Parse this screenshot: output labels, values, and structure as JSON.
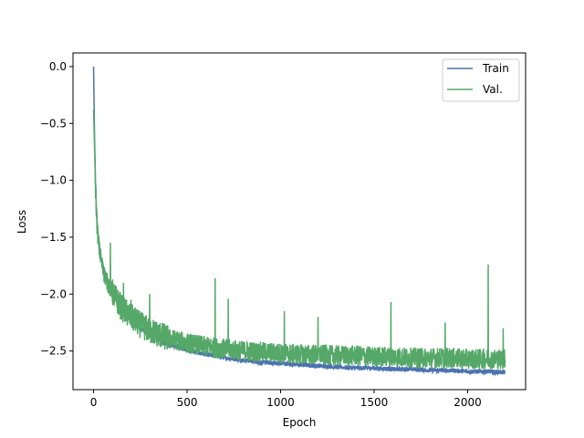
{
  "chart_data": {
    "type": "line",
    "title": "",
    "xlabel": "Epoch",
    "ylabel": "Loss",
    "xlim": [
      -110,
      2310
    ],
    "ylim": [
      -2.84,
      0.12
    ],
    "xticks": [
      0,
      500,
      1000,
      1500,
      2000
    ],
    "yticks": [
      0.0,
      -0.5,
      -1.0,
      -1.5,
      -2.0,
      -2.5
    ],
    "xtick_labels": [
      "0",
      "500",
      "1000",
      "1500",
      "2000"
    ],
    "ytick_labels": [
      "0.0",
      "−0.5",
      "−1.0",
      "−1.5",
      "−2.0",
      "−2.5"
    ],
    "grid": false,
    "legend": {
      "position": "top-right"
    },
    "series": [
      {
        "name": "Train",
        "color": "#4c72b0",
        "x": [
          0,
          5,
          10,
          15,
          20,
          30,
          40,
          50,
          60,
          80,
          100,
          120,
          150,
          200,
          250,
          300,
          400,
          500,
          600,
          700,
          800,
          900,
          1000,
          1100,
          1200,
          1300,
          1400,
          1500,
          1600,
          1700,
          1800,
          1900,
          2000,
          2100,
          2200
        ],
        "values": [
          0.0,
          -0.6,
          -1.0,
          -1.25,
          -1.4,
          -1.58,
          -1.68,
          -1.76,
          -1.82,
          -1.9,
          -1.97,
          -2.03,
          -2.12,
          -2.22,
          -2.3,
          -2.36,
          -2.44,
          -2.49,
          -2.53,
          -2.56,
          -2.58,
          -2.6,
          -2.61,
          -2.62,
          -2.63,
          -2.64,
          -2.65,
          -2.65,
          -2.66,
          -2.66,
          -2.67,
          -2.67,
          -2.68,
          -2.68,
          -2.69
        ]
      },
      {
        "name": "Val.",
        "color": "#55a868",
        "x": [
          0,
          5,
          10,
          15,
          20,
          30,
          40,
          50,
          60,
          80,
          100,
          120,
          150,
          200,
          250,
          300,
          400,
          500,
          600,
          700,
          800,
          900,
          1000,
          1100,
          1200,
          1300,
          1400,
          1500,
          1600,
          1700,
          1800,
          1900,
          2000,
          2100,
          2200
        ],
        "values": [
          -0.38,
          -0.7,
          -1.05,
          -1.28,
          -1.43,
          -1.6,
          -1.7,
          -1.78,
          -1.84,
          -1.92,
          -1.98,
          -2.04,
          -2.12,
          -2.2,
          -2.27,
          -2.32,
          -2.39,
          -2.43,
          -2.46,
          -2.48,
          -2.5,
          -2.51,
          -2.52,
          -2.53,
          -2.53,
          -2.54,
          -2.54,
          -2.55,
          -2.55,
          -2.56,
          -2.56,
          -2.56,
          -2.57,
          -2.57,
          -2.57
        ],
        "spikes": [
          {
            "x": 90,
            "y": -1.55
          },
          {
            "x": 160,
            "y": -1.9
          },
          {
            "x": 200,
            "y": -2.05
          },
          {
            "x": 300,
            "y": -2.0
          },
          {
            "x": 650,
            "y": -1.86
          },
          {
            "x": 720,
            "y": -2.04
          },
          {
            "x": 1020,
            "y": -2.15
          },
          {
            "x": 1200,
            "y": -2.2
          },
          {
            "x": 1590,
            "y": -2.07
          },
          {
            "x": 1880,
            "y": -2.25
          },
          {
            "x": 2110,
            "y": -1.74
          },
          {
            "x": 2190,
            "y": -2.3
          }
        ]
      }
    ]
  }
}
